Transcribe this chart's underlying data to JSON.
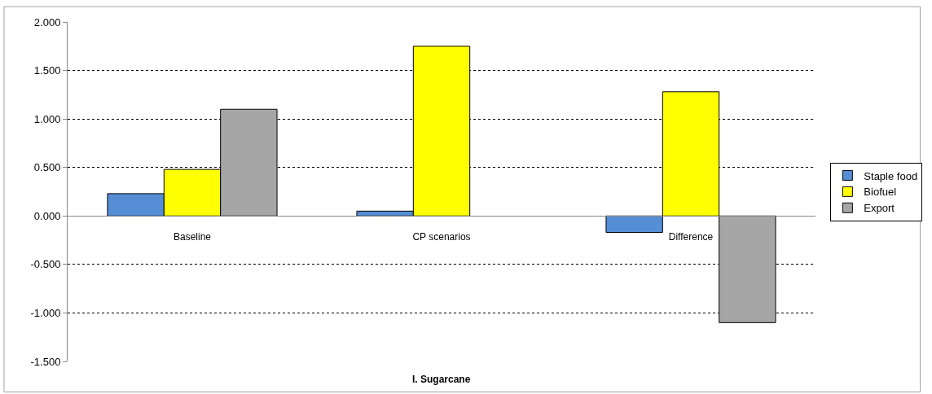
{
  "chart_data": {
    "type": "bar",
    "xlabel": "I. Sugarcane",
    "categories": [
      "Baseline",
      "CP scenarios",
      "Difference"
    ],
    "series": [
      {
        "name": "Staple food",
        "color": "#558ed5",
        "values": [
          0.23,
          0.05,
          -0.17
        ]
      },
      {
        "name": "Biofuel",
        "color": "#ffff00",
        "values": [
          0.48,
          1.75,
          1.28
        ]
      },
      {
        "name": "Export",
        "color": "#a6a6a6",
        "values": [
          1.1,
          null,
          -1.1
        ]
      }
    ],
    "ylim": [
      -1.5,
      2.0
    ],
    "yticks": [
      {
        "value": -1.5,
        "label": "-1.500"
      },
      {
        "value": -1.0,
        "label": "-1.000"
      },
      {
        "value": -0.5,
        "label": "-0.500"
      },
      {
        "value": 0,
        "label": "0.000"
      },
      {
        "value": 0.5,
        "label": "0.500"
      },
      {
        "value": 1.0,
        "label": "1.000"
      },
      {
        "value": 1.5,
        "label": "1.500"
      },
      {
        "value": 2.0,
        "label": "2.000"
      }
    ],
    "grid": "y",
    "legend": "right"
  }
}
